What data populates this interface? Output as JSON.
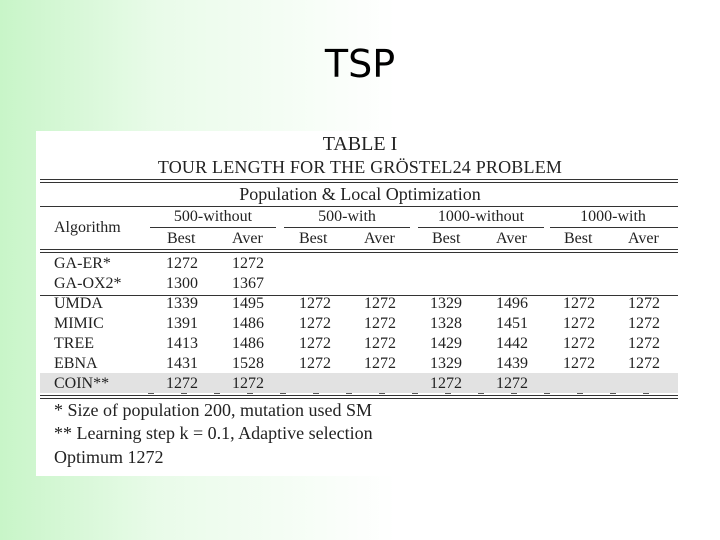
{
  "slide": {
    "title": "TSP"
  },
  "table": {
    "caption_line1": "TABLE I",
    "caption_line2": "TOUR LENGTH FOR THE GRÖSTEL24 PROBLEM",
    "section_header": "Population & Local Optimization",
    "algorithm_header": "Algorithm",
    "groups": [
      "500-without",
      "500-with",
      "1000-without",
      "1000-with"
    ],
    "subheaders": [
      "Best",
      "Aver",
      "Best",
      "Aver",
      "Best",
      "Aver",
      "Best",
      "Aver"
    ],
    "block1": [
      {
        "name": "GA-ER*",
        "values": [
          "1272",
          "1272",
          "",
          "",
          "",
          "",
          "",
          ""
        ]
      },
      {
        "name": "GA-OX2*",
        "values": [
          "1300",
          "1367",
          "",
          "",
          "",
          "",
          "",
          ""
        ]
      }
    ],
    "block2": [
      {
        "name": "UMDA",
        "values": [
          "1339",
          "1495",
          "1272",
          "1272",
          "1329",
          "1496",
          "1272",
          "1272"
        ]
      },
      {
        "name": "MIMIC",
        "values": [
          "1391",
          "1486",
          "1272",
          "1272",
          "1328",
          "1451",
          "1272",
          "1272"
        ]
      },
      {
        "name": "TREE",
        "values": [
          "1413",
          "1486",
          "1272",
          "1272",
          "1429",
          "1442",
          "1272",
          "1272"
        ]
      },
      {
        "name": "EBNA",
        "values": [
          "1431",
          "1528",
          "1272",
          "1272",
          "1329",
          "1439",
          "1272",
          "1272"
        ]
      },
      {
        "name": "COIN**",
        "values": [
          "1272",
          "1272",
          "",
          "",
          "1272",
          "1272",
          "",
          ""
        ]
      }
    ],
    "notes": [
      "* Size of population 200, mutation used SM",
      "** Learning step k = 0.1, Adaptive selection",
      "Optimum 1272"
    ]
  }
}
